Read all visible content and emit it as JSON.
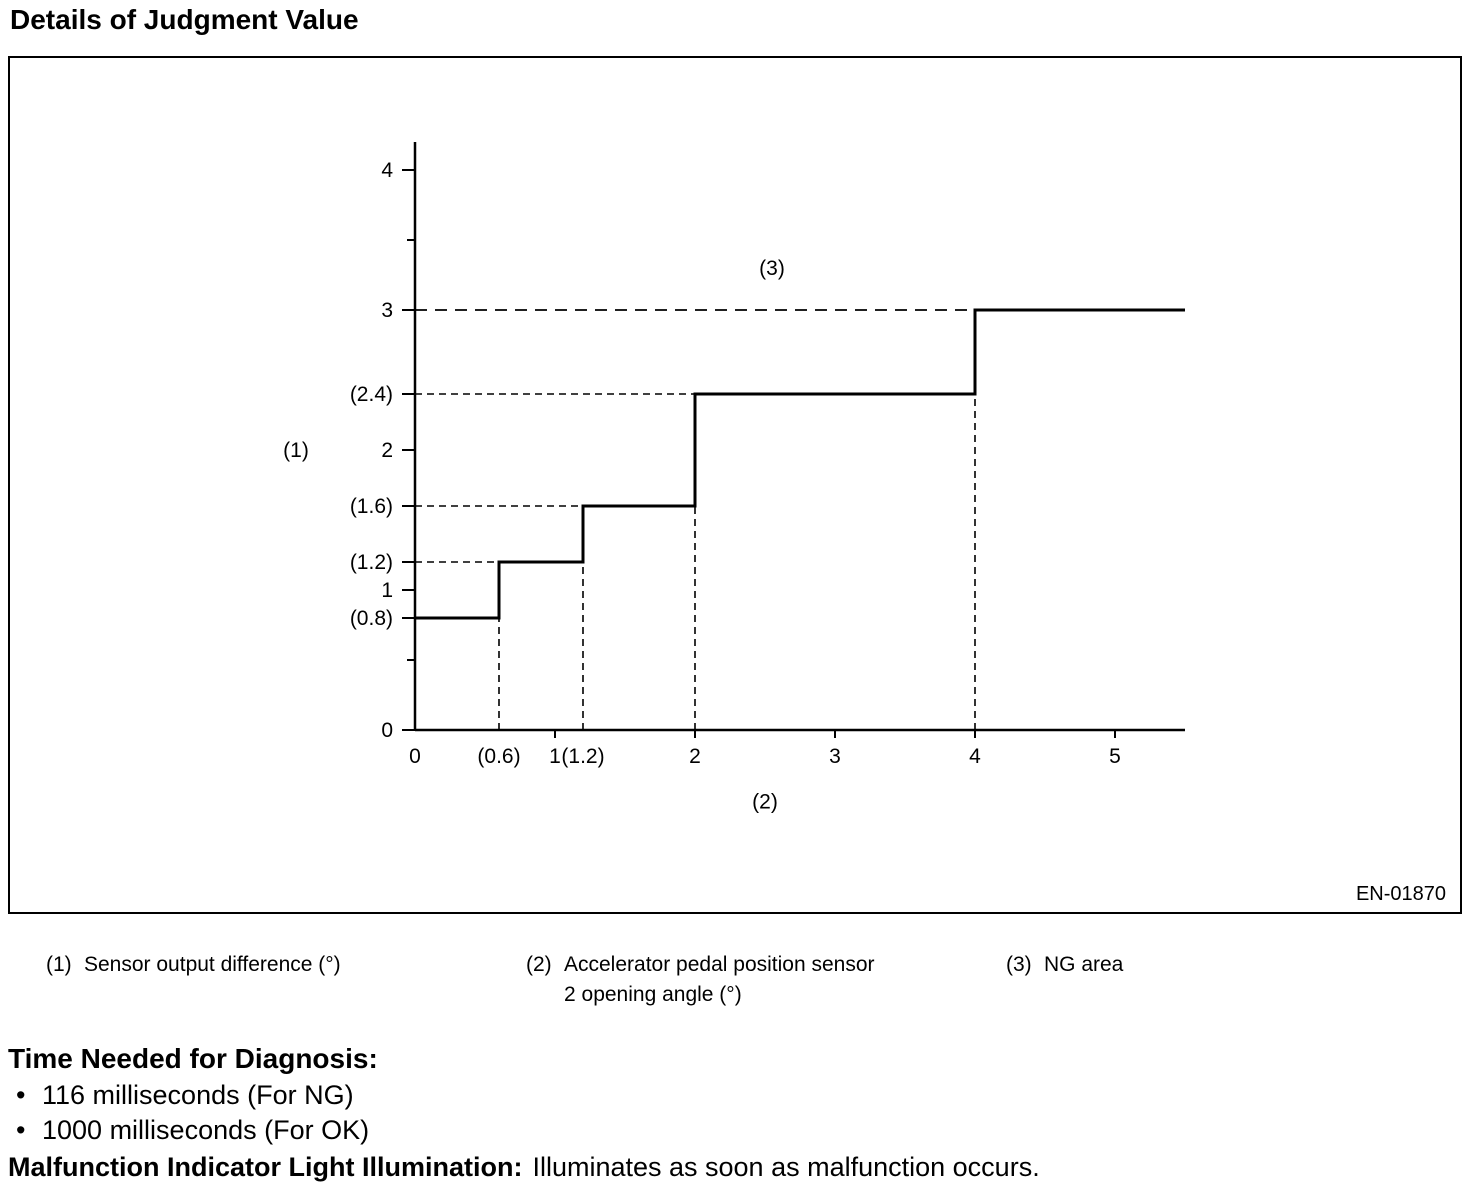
{
  "page": {
    "title": "Details of Judgment Value",
    "figure_id": "EN-01870"
  },
  "chart_data": {
    "type": "line",
    "subtype": "step",
    "title": "",
    "xlabel_ref": "(2)",
    "ylabel_ref": "(1)",
    "xlim": [
      0,
      5.5
    ],
    "ylim": [
      0,
      4.2
    ],
    "grid": false,
    "x_ticks": [
      {
        "label": "0",
        "value": 0
      },
      {
        "label": "(0.6)",
        "value": 0.6
      },
      {
        "label": "1",
        "value": 1
      },
      {
        "label": "(1.2)",
        "value": 1.2
      },
      {
        "label": "2",
        "value": 2
      },
      {
        "label": "3",
        "value": 3
      },
      {
        "label": "4",
        "value": 4
      },
      {
        "label": "5",
        "value": 5
      }
    ],
    "x_major_tick_values": [
      1,
      2,
      3,
      4,
      5
    ],
    "y_ticks": [
      {
        "label": "4",
        "value": 4
      },
      {
        "label": "3",
        "value": 3
      },
      {
        "label": "(2.4)",
        "value": 2.4
      },
      {
        "label": "2",
        "value": 2
      },
      {
        "label": "(1.6)",
        "value": 1.6
      },
      {
        "label": "(1.2)",
        "value": 1.2
      },
      {
        "label": "1",
        "value": 1
      },
      {
        "label": "(0.8)",
        "value": 0.8
      },
      {
        "label": "0",
        "value": 0
      }
    ],
    "y_minor_tick_values": [
      3.5,
      0.5
    ],
    "series": [
      {
        "name": "judgment-threshold-step",
        "points": [
          [
            0,
            0.8
          ],
          [
            0.6,
            0.8
          ],
          [
            0.6,
            1.2
          ],
          [
            1.2,
            1.2
          ],
          [
            1.2,
            1.6
          ],
          [
            2,
            1.6
          ],
          [
            2,
            2.4
          ],
          [
            4,
            2.4
          ],
          [
            4,
            3
          ],
          [
            5.5,
            3
          ]
        ]
      }
    ],
    "guides": [
      {
        "orient": "h",
        "at": 3,
        "from": 0,
        "to": 4,
        "dash": "long"
      },
      {
        "orient": "h",
        "at": 2.4,
        "from": 0,
        "to": 2,
        "dash": "short"
      },
      {
        "orient": "h",
        "at": 1.6,
        "from": 0,
        "to": 1.2,
        "dash": "short"
      },
      {
        "orient": "h",
        "at": 1.2,
        "from": 0,
        "to": 0.6,
        "dash": "short"
      },
      {
        "orient": "v",
        "at": 0.6,
        "from": 0,
        "to": 1.2,
        "dash": "short"
      },
      {
        "orient": "v",
        "at": 1.2,
        "from": 0,
        "to": 1.6,
        "dash": "short"
      },
      {
        "orient": "v",
        "at": 2,
        "from": 0,
        "to": 2.4,
        "dash": "short"
      },
      {
        "orient": "v",
        "at": 4,
        "from": 0,
        "to": 3,
        "dash": "short"
      }
    ],
    "annotations": [
      {
        "text": "(3)",
        "role": "ng-area-label",
        "x": 2.55,
        "y": 3.3
      },
      {
        "text": "(1)",
        "role": "y-axis-ref-label",
        "x": -0.85,
        "y": 2
      },
      {
        "text": "(2)",
        "role": "x-axis-ref-label",
        "x": 2.5,
        "y": -0.51
      }
    ]
  },
  "legend": [
    {
      "num": "(1)",
      "lines": [
        "Sensor output difference (°)"
      ]
    },
    {
      "num": "(2)",
      "lines": [
        "Accelerator pedal position sensor",
        "2 opening angle (°)"
      ]
    },
    {
      "num": "(3)",
      "lines": [
        "NG area"
      ]
    }
  ],
  "diagnosis": {
    "heading": "Time Needed for Diagnosis:",
    "bullet_char": "•",
    "bullets": [
      "116 milliseconds (For NG)",
      "1000 milliseconds (For OK)"
    ]
  },
  "mil": {
    "label": "Malfunction Indicator Light Illumination:",
    "text": "Illuminates as soon as malfunction occurs."
  }
}
